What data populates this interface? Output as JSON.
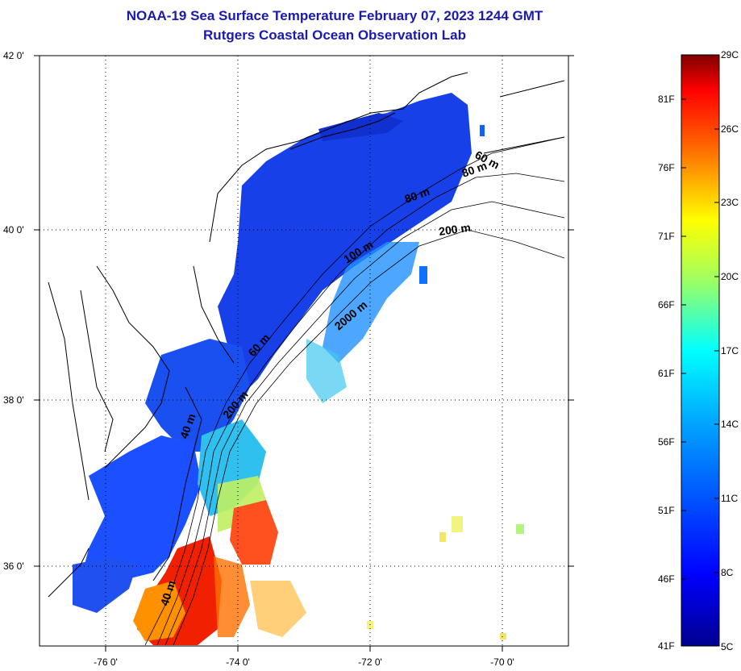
{
  "header": {
    "title": "NOAA-19 Sea Surface Temperature February 07, 2023 1244 GMT",
    "subtitle": "Rutgers Coastal Ocean Observation Lab"
  },
  "axes": {
    "lat_labels": [
      "42 0'",
      "40 0'",
      "38 0'",
      "36 0'"
    ],
    "lon_labels": [
      "-76 0'",
      "-74 0'",
      "-72 0'",
      "-70 0'"
    ]
  },
  "contours": {
    "labels": [
      "40 m",
      "40 m",
      "60 m",
      "200 m",
      "2000 m",
      "100 m",
      "80 m",
      "200 m",
      "80 m",
      "60 m"
    ]
  },
  "colorbar": {
    "fahrenheit": [
      "81F",
      "76F",
      "71F",
      "66F",
      "61F",
      "56F",
      "51F",
      "46F",
      "41F"
    ],
    "celsius": [
      "29C",
      "26C",
      "23C",
      "20C",
      "17C",
      "14C",
      "11C",
      "8C",
      "5C"
    ],
    "colors": [
      "#00008f",
      "#0000ff",
      "#0080ff",
      "#00ffff",
      "#80ff80",
      "#ffff00",
      "#ff8000",
      "#ff0000",
      "#800000"
    ]
  }
}
